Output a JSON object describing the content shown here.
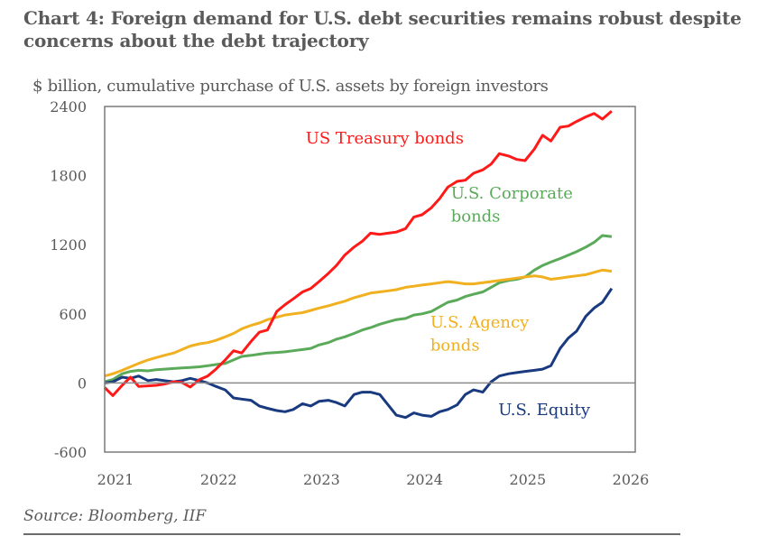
{
  "title": "Chart 4: Foreign demand for U.S. debt securities remains robust despite concerns about the debt trajectory",
  "source": "Source: Bloomberg, IIF",
  "chart_data": {
    "type": "line",
    "title": "Chart 4: Foreign demand for U.S. debt securities remains robust despite concerns about the debt trajectory",
    "subtitle": "$ billion, cumulative purchase of U.S. assets by foreign investors",
    "xlabel": "",
    "ylabel": "$ billion",
    "xlim": [
      2021,
      2026
    ],
    "ylim": [
      -600,
      2400
    ],
    "x_ticks": [
      "2021",
      "2022",
      "2023",
      "2024",
      "2025",
      "2026"
    ],
    "y_ticks": [
      "2400",
      "1800",
      "1200",
      "600",
      "0",
      "-600"
    ],
    "y_tick_values": [
      2400,
      1800,
      1200,
      600,
      0,
      -600
    ],
    "x_tick_values": [
      2021,
      2022,
      2023,
      2024,
      2025,
      2026
    ],
    "grid": false,
    "zero_line": true,
    "legend": "inline-labels",
    "x": [
      2021.0,
      2021.08,
      2021.17,
      2021.25,
      2021.33,
      2021.42,
      2021.5,
      2021.58,
      2021.67,
      2021.75,
      2021.83,
      2021.92,
      2022.0,
      2022.08,
      2022.17,
      2022.25,
      2022.33,
      2022.42,
      2022.5,
      2022.58,
      2022.67,
      2022.75,
      2022.83,
      2022.92,
      2023.0,
      2023.08,
      2023.17,
      2023.25,
      2023.33,
      2023.42,
      2023.5,
      2023.58,
      2023.67,
      2023.75,
      2023.83,
      2023.92,
      2024.0,
      2024.08,
      2024.17,
      2024.25,
      2024.33,
      2024.42,
      2024.5,
      2024.58,
      2024.67,
      2024.75,
      2024.83,
      2024.92,
      2025.0,
      2025.08,
      2025.17,
      2025.25,
      2025.33,
      2025.42,
      2025.5,
      2025.58,
      2025.67,
      2025.75,
      2025.83,
      2025.92
    ],
    "series": [
      {
        "name": "US Treasury bonds",
        "color": "#ff1a1a",
        "values": [
          -40,
          -110,
          -20,
          50,
          -30,
          -25,
          -20,
          -10,
          10,
          5,
          -35,
          30,
          60,
          120,
          200,
          280,
          260,
          360,
          440,
          460,
          620,
          680,
          730,
          790,
          820,
          880,
          950,
          1020,
          1110,
          1180,
          1230,
          1300,
          1290,
          1300,
          1310,
          1340,
          1440,
          1460,
          1520,
          1600,
          1700,
          1750,
          1760,
          1820,
          1850,
          1900,
          1990,
          1970,
          1940,
          1930,
          2030,
          2150,
          2100,
          2220,
          2230,
          2270,
          2310,
          2340,
          2290,
          2360
        ]
      },
      {
        "name": "U.S. Corporate bonds",
        "color": "#5aaa5a",
        "values": [
          10,
          30,
          80,
          100,
          110,
          105,
          115,
          120,
          125,
          130,
          135,
          140,
          150,
          160,
          170,
          200,
          230,
          240,
          250,
          260,
          265,
          270,
          280,
          290,
          300,
          330,
          350,
          380,
          400,
          430,
          460,
          480,
          510,
          530,
          550,
          560,
          590,
          600,
          620,
          660,
          700,
          720,
          750,
          770,
          790,
          830,
          870,
          890,
          900,
          920,
          980,
          1020,
          1050,
          1080,
          1110,
          1140,
          1180,
          1220,
          1280,
          1270
        ]
      },
      {
        "name": "U.S. Agency bonds",
        "color": "#f0b020",
        "values": [
          60,
          80,
          110,
          140,
          170,
          200,
          220,
          240,
          260,
          290,
          320,
          340,
          350,
          370,
          400,
          430,
          470,
          500,
          520,
          550,
          570,
          590,
          600,
          610,
          630,
          650,
          670,
          690,
          710,
          740,
          760,
          780,
          790,
          800,
          810,
          830,
          840,
          850,
          860,
          870,
          880,
          870,
          860,
          860,
          870,
          880,
          890,
          900,
          910,
          920,
          930,
          920,
          900,
          910,
          920,
          930,
          940,
          960,
          980,
          970
        ]
      },
      {
        "name": "U.S. Equity",
        "color": "#1a3a80",
        "values": [
          0,
          10,
          50,
          40,
          60,
          20,
          30,
          20,
          10,
          20,
          40,
          20,
          0,
          -30,
          -60,
          -130,
          -140,
          -150,
          -200,
          -220,
          -240,
          -250,
          -230,
          -180,
          -200,
          -160,
          -150,
          -170,
          -200,
          -100,
          -80,
          -80,
          -100,
          -190,
          -280,
          -300,
          -260,
          -280,
          -290,
          -250,
          -230,
          -190,
          -100,
          -60,
          -80,
          10,
          60,
          80,
          90,
          100,
          110,
          120,
          150,
          300,
          390,
          450,
          580,
          650,
          700,
          820
        ]
      }
    ],
    "annotations": [
      {
        "text": "US Treasury bonds",
        "series": "US Treasury bonds",
        "x": 2022.95,
        "y": 2080
      },
      {
        "text": "U.S. Corporate",
        "series": "U.S. Corporate bonds",
        "x": 2024.36,
        "y": 1600
      },
      {
        "text": "bonds",
        "series": "U.S. Corporate bonds",
        "x": 2024.36,
        "y": 1400
      },
      {
        "text": "U.S. Agency",
        "series": "U.S. Agency bonds",
        "x": 2024.16,
        "y": 480
      },
      {
        "text": "bonds",
        "series": "U.S. Agency bonds",
        "x": 2024.16,
        "y": 280
      },
      {
        "text": "U.S. Equity",
        "series": "U.S. Equity",
        "x": 2024.82,
        "y": -280
      }
    ]
  }
}
